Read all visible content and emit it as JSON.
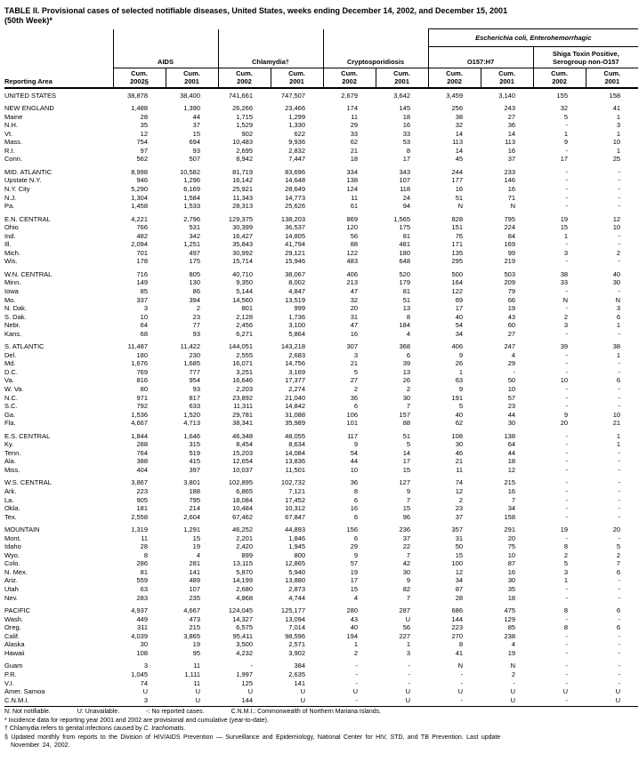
{
  "title": {
    "text": "TABLE II. Provisional cases of selected notifiable diseases, United States, weeks ending December 14, 2002, and December 15, 2001\n(50th Week)*"
  },
  "header": {
    "reporting_area": "Reporting Area",
    "groups": {
      "aids": "AIDS",
      "chlamydia": "Chlamydia†",
      "crypto": "Cryptosporidiosis",
      "ecoli_super": "Escherichia coli, Enterohemorrhagic",
      "o157": "O157:H7",
      "shiga": "Shiga Toxin Positive,\nSerogroup non-O157"
    },
    "col_labels": [
      "Cum.\n2002§",
      "Cum.\n2001",
      "Cum.\n2002",
      "Cum.\n2001",
      "Cum.\n2002",
      "Cum.\n2001",
      "Cum.\n2002",
      "Cum.\n2001",
      "Cum.\n2002",
      "Cum.\n2001"
    ]
  },
  "rows": [
    {
      "area": "UNITED STATES",
      "group_start": false,
      "values": [
        "38,878",
        "38,400",
        "741,661",
        "747,507",
        "2,679",
        "3,642",
        "3,459",
        "3,140",
        "155",
        "158"
      ]
    },
    {
      "area": "NEW ENGLAND",
      "group_start": true,
      "values": [
        "1,488",
        "1,390",
        "26,266",
        "23,466",
        "174",
        "145",
        "256",
        "243",
        "32",
        "41"
      ]
    },
    {
      "area": "Maine",
      "group_start": false,
      "values": [
        "28",
        "44",
        "1,715",
        "1,299",
        "11",
        "18",
        "38",
        "27",
        "5",
        "1"
      ]
    },
    {
      "area": "N.H.",
      "group_start": false,
      "values": [
        "35",
        "37",
        "1,529",
        "1,330",
        "29",
        "16",
        "32",
        "36",
        "-",
        "3"
      ]
    },
    {
      "area": "Vt.",
      "group_start": false,
      "values": [
        "12",
        "15",
        "902",
        "622",
        "33",
        "33",
        "14",
        "14",
        "1",
        "1"
      ]
    },
    {
      "area": "Mass.",
      "group_start": false,
      "values": [
        "754",
        "694",
        "10,483",
        "9,936",
        "62",
        "53",
        "113",
        "113",
        "9",
        "10"
      ]
    },
    {
      "area": "R.I.",
      "group_start": false,
      "values": [
        "97",
        "93",
        "2,695",
        "2,832",
        "21",
        "8",
        "14",
        "16",
        "-",
        "1"
      ]
    },
    {
      "area": "Conn.",
      "group_start": false,
      "values": [
        "562",
        "507",
        "8,942",
        "7,447",
        "18",
        "17",
        "45",
        "37",
        "17",
        "25"
      ]
    },
    {
      "area": "MID. ATLANTIC",
      "group_start": true,
      "values": [
        "8,998",
        "10,582",
        "81,719",
        "83,696",
        "334",
        "343",
        "244",
        "233",
        "-",
        "-"
      ]
    },
    {
      "area": "Upstate N.Y.",
      "group_start": false,
      "values": [
        "946",
        "1,296",
        "16,142",
        "14,648",
        "138",
        "107",
        "177",
        "146",
        "-",
        "-"
      ]
    },
    {
      "area": "N.Y. City",
      "group_start": false,
      "values": [
        "5,290",
        "6,169",
        "25,921",
        "28,649",
        "124",
        "118",
        "16",
        "16",
        "-",
        "-"
      ]
    },
    {
      "area": "N.J.",
      "group_start": false,
      "values": [
        "1,304",
        "1,584",
        "11,343",
        "14,773",
        "11",
        "24",
        "51",
        "71",
        "-",
        "-"
      ]
    },
    {
      "area": "Pa.",
      "group_start": false,
      "values": [
        "1,458",
        "1,533",
        "28,313",
        "25,626",
        "61",
        "94",
        "N",
        "N",
        "-",
        "-"
      ]
    },
    {
      "area": "E.N. CENTRAL",
      "group_start": true,
      "values": [
        "4,221",
        "2,796",
        "129,375",
        "138,203",
        "869",
        "1,565",
        "828",
        "795",
        "19",
        "12"
      ]
    },
    {
      "area": "Ohio",
      "group_start": false,
      "values": [
        "766",
        "531",
        "30,399",
        "36,537",
        "120",
        "175",
        "151",
        "224",
        "15",
        "10"
      ]
    },
    {
      "area": "Ind.",
      "group_start": false,
      "values": [
        "482",
        "342",
        "16,427",
        "14,805",
        "56",
        "81",
        "76",
        "84",
        "1",
        "-"
      ]
    },
    {
      "area": "Ill.",
      "group_start": false,
      "values": [
        "2,094",
        "1,251",
        "35,843",
        "41,794",
        "88",
        "481",
        "171",
        "169",
        "-",
        "-"
      ]
    },
    {
      "area": "Mich.",
      "group_start": false,
      "values": [
        "701",
        "497",
        "30,992",
        "29,121",
        "122",
        "180",
        "135",
        "99",
        "3",
        "2"
      ]
    },
    {
      "area": "Wis.",
      "group_start": false,
      "values": [
        "178",
        "175",
        "15,714",
        "15,946",
        "483",
        "648",
        "295",
        "219",
        "-",
        "-"
      ]
    },
    {
      "area": "W.N. CENTRAL",
      "group_start": true,
      "values": [
        "716",
        "805",
        "40,710",
        "38,067",
        "406",
        "520",
        "500",
        "503",
        "38",
        "40"
      ]
    },
    {
      "area": "Minn.",
      "group_start": false,
      "values": [
        "149",
        "130",
        "9,350",
        "8,002",
        "213",
        "179",
        "164",
        "209",
        "33",
        "30"
      ]
    },
    {
      "area": "Iowa",
      "group_start": false,
      "values": [
        "85",
        "86",
        "5,144",
        "4,847",
        "47",
        "81",
        "122",
        "79",
        "-",
        "-"
      ]
    },
    {
      "area": "Mo.",
      "group_start": false,
      "values": [
        "337",
        "394",
        "14,560",
        "13,519",
        "32",
        "51",
        "69",
        "66",
        "N",
        "N"
      ]
    },
    {
      "area": "N. Dak.",
      "group_start": false,
      "values": [
        "3",
        "2",
        "801",
        "999",
        "20",
        "13",
        "17",
        "19",
        "-",
        "3"
      ]
    },
    {
      "area": "S. Dak.",
      "group_start": false,
      "values": [
        "10",
        "23",
        "2,128",
        "1,736",
        "31",
        "8",
        "40",
        "43",
        "2",
        "6"
      ]
    },
    {
      "area": "Nebr.",
      "group_start": false,
      "values": [
        "64",
        "77",
        "2,456",
        "3,100",
        "47",
        "184",
        "54",
        "60",
        "3",
        "1"
      ]
    },
    {
      "area": "Kans.",
      "group_start": false,
      "values": [
        "68",
        "93",
        "6,271",
        "5,864",
        "16",
        "4",
        "34",
        "27",
        "-",
        "-"
      ]
    },
    {
      "area": "S. ATLANTIC",
      "group_start": true,
      "values": [
        "11,487",
        "11,422",
        "144,051",
        "143,218",
        "307",
        "368",
        "406",
        "247",
        "39",
        "38"
      ]
    },
    {
      "area": "Del.",
      "group_start": false,
      "values": [
        "180",
        "230",
        "2,555",
        "2,683",
        "3",
        "6",
        "9",
        "4",
        "-",
        "1"
      ]
    },
    {
      "area": "Md.",
      "group_start": false,
      "values": [
        "1,676",
        "1,685",
        "16,071",
        "14,756",
        "21",
        "39",
        "26",
        "29",
        "-",
        "-"
      ]
    },
    {
      "area": "D.C.",
      "group_start": false,
      "values": [
        "769",
        "777",
        "3,251",
        "3,169",
        "5",
        "13",
        "1",
        "-",
        "-",
        "-"
      ]
    },
    {
      "area": "Va.",
      "group_start": false,
      "values": [
        "816",
        "954",
        "16,646",
        "17,377",
        "27",
        "26",
        "63",
        "50",
        "10",
        "6"
      ]
    },
    {
      "area": "W. Va.",
      "group_start": false,
      "values": [
        "80",
        "93",
        "2,203",
        "2,274",
        "2",
        "2",
        "9",
        "10",
        "-",
        "-"
      ]
    },
    {
      "area": "N.C.",
      "group_start": false,
      "values": [
        "971",
        "817",
        "23,892",
        "21,040",
        "36",
        "30",
        "191",
        "57",
        "-",
        "-"
      ]
    },
    {
      "area": "S.C.",
      "group_start": false,
      "values": [
        "792",
        "633",
        "11,311",
        "14,842",
        "6",
        "7",
        "5",
        "23",
        "-",
        "-"
      ]
    },
    {
      "area": "Ga.",
      "group_start": false,
      "values": [
        "1,536",
        "1,520",
        "29,781",
        "31,088",
        "106",
        "157",
        "40",
        "44",
        "9",
        "10"
      ]
    },
    {
      "area": "Fla.",
      "group_start": false,
      "values": [
        "4,667",
        "4,713",
        "38,341",
        "35,989",
        "101",
        "88",
        "62",
        "30",
        "20",
        "21"
      ]
    },
    {
      "area": "E.S. CENTRAL",
      "group_start": true,
      "values": [
        "1,844",
        "1,646",
        "46,348",
        "48,055",
        "117",
        "51",
        "108",
        "138",
        "-",
        "1"
      ]
    },
    {
      "area": "Ky.",
      "group_start": false,
      "values": [
        "288",
        "315",
        "8,454",
        "8,634",
        "9",
        "5",
        "30",
        "64",
        "-",
        "1"
      ]
    },
    {
      "area": "Tenn.",
      "group_start": false,
      "values": [
        "764",
        "519",
        "15,203",
        "14,084",
        "54",
        "14",
        "46",
        "44",
        "-",
        "-"
      ]
    },
    {
      "area": "Ala.",
      "group_start": false,
      "values": [
        "388",
        "415",
        "12,654",
        "13,836",
        "44",
        "17",
        "21",
        "18",
        "-",
        "-"
      ]
    },
    {
      "area": "Miss.",
      "group_start": false,
      "values": [
        "404",
        "397",
        "10,037",
        "11,501",
        "10",
        "15",
        "11",
        "12",
        "-",
        "-"
      ]
    },
    {
      "area": "W.S. CENTRAL",
      "group_start": true,
      "values": [
        "3,867",
        "3,801",
        "102,895",
        "102,732",
        "36",
        "127",
        "74",
        "215",
        "-",
        "-"
      ]
    },
    {
      "area": "Ark.",
      "group_start": false,
      "values": [
        "223",
        "188",
        "6,865",
        "7,121",
        "8",
        "9",
        "12",
        "16",
        "-",
        "-"
      ]
    },
    {
      "area": "La.",
      "group_start": false,
      "values": [
        "905",
        "795",
        "18,084",
        "17,452",
        "6",
        "7",
        "2",
        "7",
        "-",
        "-"
      ]
    },
    {
      "area": "Okla.",
      "group_start": false,
      "values": [
        "181",
        "214",
        "10,484",
        "10,312",
        "16",
        "15",
        "23",
        "34",
        "-",
        "-"
      ]
    },
    {
      "area": "Tex.",
      "group_start": false,
      "values": [
        "2,558",
        "2,604",
        "67,462",
        "67,847",
        "6",
        "96",
        "37",
        "158",
        "-",
        "-"
      ]
    },
    {
      "area": "MOUNTAIN",
      "group_start": true,
      "values": [
        "1,319",
        "1,291",
        "46,252",
        "44,893",
        "156",
        "236",
        "357",
        "291",
        "19",
        "20"
      ]
    },
    {
      "area": "Mont.",
      "group_start": false,
      "values": [
        "11",
        "15",
        "2,201",
        "1,846",
        "6",
        "37",
        "31",
        "20",
        "-",
        "-"
      ]
    },
    {
      "area": "Idaho",
      "group_start": false,
      "values": [
        "28",
        "19",
        "2,420",
        "1,945",
        "29",
        "22",
        "50",
        "75",
        "8",
        "5"
      ]
    },
    {
      "area": "Wyo.",
      "group_start": false,
      "values": [
        "8",
        "4",
        "899",
        "800",
        "9",
        "7",
        "15",
        "10",
        "2",
        "2"
      ]
    },
    {
      "area": "Colo.",
      "group_start": false,
      "values": [
        "286",
        "281",
        "13,115",
        "12,865",
        "57",
        "42",
        "100",
        "87",
        "5",
        "7"
      ]
    },
    {
      "area": "N. Mex.",
      "group_start": false,
      "values": [
        "81",
        "141",
        "5,870",
        "5,940",
        "19",
        "30",
        "12",
        "16",
        "3",
        "6"
      ]
    },
    {
      "area": "Ariz.",
      "group_start": false,
      "values": [
        "559",
        "489",
        "14,199",
        "13,880",
        "17",
        "9",
        "34",
        "30",
        "1",
        "-"
      ]
    },
    {
      "area": "Utah",
      "group_start": false,
      "values": [
        "63",
        "107",
        "2,680",
        "2,873",
        "15",
        "82",
        "87",
        "35",
        "-",
        "-"
      ]
    },
    {
      "area": "Nev.",
      "group_start": false,
      "values": [
        "283",
        "235",
        "4,868",
        "4,744",
        "4",
        "7",
        "28",
        "18",
        "-",
        "-"
      ]
    },
    {
      "area": "PACIFIC",
      "group_start": true,
      "values": [
        "4,937",
        "4,667",
        "124,045",
        "125,177",
        "280",
        "287",
        "686",
        "475",
        "8",
        "6"
      ]
    },
    {
      "area": "Wash.",
      "group_start": false,
      "values": [
        "449",
        "473",
        "14,327",
        "13,094",
        "43",
        "U",
        "144",
        "129",
        "-",
        "-"
      ]
    },
    {
      "area": "Oreg.",
      "group_start": false,
      "values": [
        "311",
        "215",
        "6,575",
        "7,014",
        "40",
        "56",
        "223",
        "85",
        "8",
        "6"
      ]
    },
    {
      "area": "Calif.",
      "group_start": false,
      "values": [
        "4,039",
        "3,865",
        "95,411",
        "98,596",
        "194",
        "227",
        "270",
        "238",
        "-",
        "-"
      ]
    },
    {
      "area": "Alaska",
      "group_start": false,
      "values": [
        "30",
        "19",
        "3,500",
        "2,571",
        "1",
        "1",
        "8",
        "4",
        "-",
        "-"
      ]
    },
    {
      "area": "Hawaii",
      "group_start": false,
      "values": [
        "108",
        "95",
        "4,232",
        "3,902",
        "2",
        "3",
        "41",
        "19",
        "-",
        "-"
      ]
    },
    {
      "area": "Guam",
      "group_start": true,
      "values": [
        "3",
        "11",
        "-",
        "384",
        "-",
        "-",
        "N",
        "N",
        "-",
        "-"
      ]
    },
    {
      "area": "P.R.",
      "group_start": false,
      "values": [
        "1,045",
        "1,111",
        "1,997",
        "2,635",
        "-",
        "-",
        "-",
        "2",
        "-",
        "-"
      ]
    },
    {
      "area": "V.I.",
      "group_start": false,
      "values": [
        "74",
        "11",
        "125",
        "141",
        "-",
        "-",
        "-",
        "-",
        "-",
        "-"
      ]
    },
    {
      "area": "Amer. Samoa",
      "group_start": false,
      "values": [
        "U",
        "U",
        "U",
        "U",
        "U",
        "U",
        "U",
        "U",
        "U",
        "U"
      ]
    },
    {
      "area": "C.N.M.I.",
      "group_start": false,
      "values": [
        "3",
        "U",
        "144",
        "U",
        "-",
        "U",
        "-",
        "U",
        "-",
        "U"
      ]
    }
  ],
  "footnotes": {
    "legend": [
      "N: Not notifiable.",
      "U: Unavailable.",
      "-: No reported cases.",
      "C.N.M.I.: Commonwealth of Northern Mariana Islands."
    ],
    "star": "* Incidence data for reporting year 2001 and 2002 are provisional and cumulative (year-to-date).",
    "dagger_before": "† Chlamydia refers to genital infections caused by ",
    "dagger_italic": "C. trachomatis",
    "dagger_after": ".",
    "section": "§ Updated monthly from reports to the Division of HIV/AIDS Prevention — Surveillance and Epidemiology, National Center for HIV, STD, and TB Prevention. Last update\nNovember 24, 2002."
  }
}
